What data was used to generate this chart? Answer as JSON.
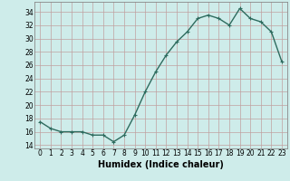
{
  "x": [
    0,
    1,
    2,
    3,
    4,
    5,
    6,
    7,
    8,
    9,
    10,
    11,
    12,
    13,
    14,
    15,
    16,
    17,
    18,
    19,
    20,
    21,
    22,
    23
  ],
  "y": [
    17.5,
    16.5,
    16.0,
    16.0,
    16.0,
    15.5,
    15.5,
    14.5,
    15.5,
    18.5,
    22.0,
    25.0,
    27.5,
    29.5,
    31.0,
    33.0,
    33.5,
    33.0,
    32.0,
    34.5,
    33.0,
    32.5,
    31.0,
    26.5
  ],
  "line_color": "#2d6b5e",
  "marker": "+",
  "markersize": 3,
  "linewidth": 1.0,
  "xlabel": "Humidex (Indice chaleur)",
  "xlabel_fontsize": 7,
  "ylabel_ticks": [
    14,
    16,
    18,
    20,
    22,
    24,
    26,
    28,
    30,
    32,
    34
  ],
  "xticks": [
    0,
    1,
    2,
    3,
    4,
    5,
    6,
    7,
    8,
    9,
    10,
    11,
    12,
    13,
    14,
    15,
    16,
    17,
    18,
    19,
    20,
    21,
    22,
    23
  ],
  "xlim": [
    -0.5,
    23.5
  ],
  "ylim": [
    13.5,
    35.5
  ],
  "bg_color": "#ceecea",
  "grid_color": "#c0a0a0",
  "tick_fontsize": 5.5,
  "spine_color": "#888888"
}
